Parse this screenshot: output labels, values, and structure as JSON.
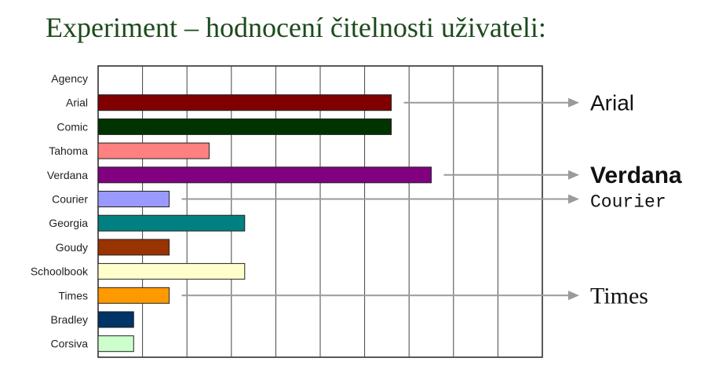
{
  "title": "Experiment – hodnocení čitelnosti uživateli:",
  "chart_data": {
    "type": "bar",
    "orientation": "horizontal",
    "categories": [
      "Agency",
      "Arial",
      "Comic",
      "Tahoma",
      "Verdana",
      "Courier",
      "Georgia",
      "Goudy",
      "Schoolbook",
      "Times",
      "Bradley",
      "Corsiva"
    ],
    "values": [
      0,
      6.6,
      6.6,
      2.5,
      7.5,
      1.6,
      3.3,
      1.6,
      3.3,
      1.6,
      0.8,
      0.8
    ],
    "colors": [
      "#ffffff",
      "#800000",
      "#003300",
      "#ff8080",
      "#800080",
      "#9999ff",
      "#008080",
      "#993300",
      "#ffffcc",
      "#ff9900",
      "#003366",
      "#ccffcc"
    ],
    "xlim": [
      0,
      10
    ],
    "grid": true,
    "annotations": [
      {
        "label": "Arial",
        "category": "Arial",
        "font": "sans"
      },
      {
        "label": "Verdana",
        "category": "Verdana",
        "font": "sans-bold"
      },
      {
        "label": "Courier",
        "category": "Courier",
        "font": "mono"
      },
      {
        "label": "Times",
        "category": "Times",
        "font": "serif"
      }
    ]
  }
}
